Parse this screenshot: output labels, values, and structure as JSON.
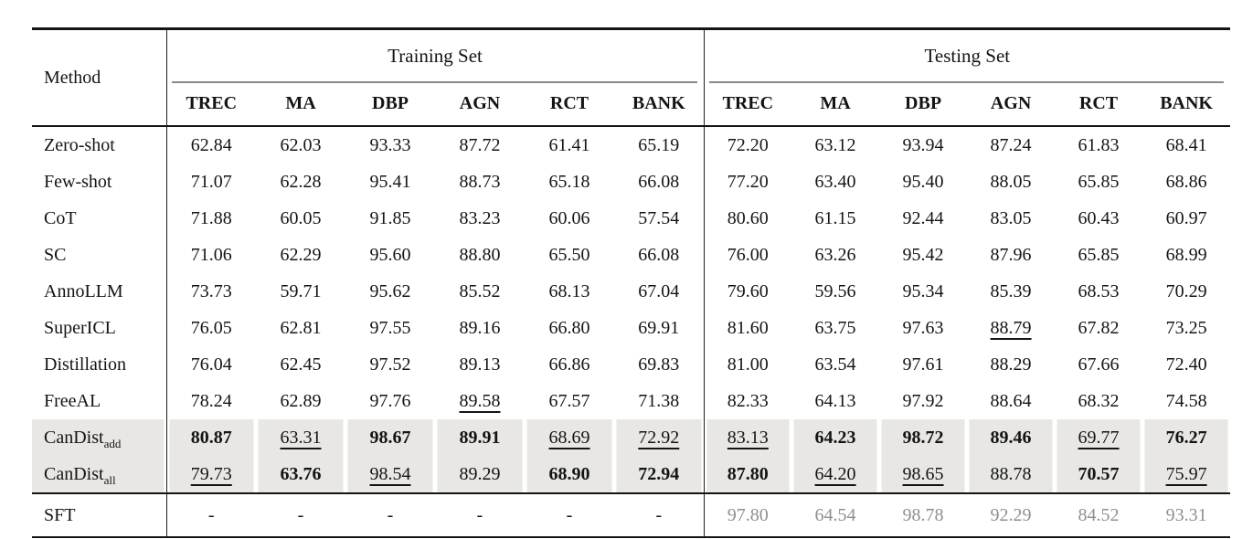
{
  "table": {
    "header": {
      "method_label": "Method",
      "groups": [
        {
          "label": "Training Set"
        },
        {
          "label": "Testing Set"
        }
      ],
      "columns": [
        "TREC",
        "MA",
        "DBP",
        "AGN",
        "RCT",
        "BANK"
      ]
    },
    "rows": [
      {
        "method": "Zero-shot",
        "sub": "",
        "highlight": false,
        "sft": false,
        "cells": [
          {
            "v": "62.84",
            "f": "normal"
          },
          {
            "v": "62.03",
            "f": "normal"
          },
          {
            "v": "93.33",
            "f": "normal"
          },
          {
            "v": "87.72",
            "f": "normal"
          },
          {
            "v": "61.41",
            "f": "normal"
          },
          {
            "v": "65.19",
            "f": "normal"
          },
          {
            "v": "72.20",
            "f": "normal"
          },
          {
            "v": "63.12",
            "f": "normal"
          },
          {
            "v": "93.94",
            "f": "normal"
          },
          {
            "v": "87.24",
            "f": "normal"
          },
          {
            "v": "61.83",
            "f": "normal"
          },
          {
            "v": "68.41",
            "f": "normal"
          }
        ]
      },
      {
        "method": "Few-shot",
        "sub": "",
        "highlight": false,
        "sft": false,
        "cells": [
          {
            "v": "71.07",
            "f": "normal"
          },
          {
            "v": "62.28",
            "f": "normal"
          },
          {
            "v": "95.41",
            "f": "normal"
          },
          {
            "v": "88.73",
            "f": "normal"
          },
          {
            "v": "65.18",
            "f": "normal"
          },
          {
            "v": "66.08",
            "f": "normal"
          },
          {
            "v": "77.20",
            "f": "normal"
          },
          {
            "v": "63.40",
            "f": "normal"
          },
          {
            "v": "95.40",
            "f": "normal"
          },
          {
            "v": "88.05",
            "f": "normal"
          },
          {
            "v": "65.85",
            "f": "normal"
          },
          {
            "v": "68.86",
            "f": "normal"
          }
        ]
      },
      {
        "method": "CoT",
        "sub": "",
        "highlight": false,
        "sft": false,
        "cells": [
          {
            "v": "71.88",
            "f": "normal"
          },
          {
            "v": "60.05",
            "f": "normal"
          },
          {
            "v": "91.85",
            "f": "normal"
          },
          {
            "v": "83.23",
            "f": "normal"
          },
          {
            "v": "60.06",
            "f": "normal"
          },
          {
            "v": "57.54",
            "f": "normal"
          },
          {
            "v": "80.60",
            "f": "normal"
          },
          {
            "v": "61.15",
            "f": "normal"
          },
          {
            "v": "92.44",
            "f": "normal"
          },
          {
            "v": "83.05",
            "f": "normal"
          },
          {
            "v": "60.43",
            "f": "normal"
          },
          {
            "v": "60.97",
            "f": "normal"
          }
        ]
      },
      {
        "method": "SC",
        "sub": "",
        "highlight": false,
        "sft": false,
        "cells": [
          {
            "v": "71.06",
            "f": "normal"
          },
          {
            "v": "62.29",
            "f": "normal"
          },
          {
            "v": "95.60",
            "f": "normal"
          },
          {
            "v": "88.80",
            "f": "normal"
          },
          {
            "v": "65.50",
            "f": "normal"
          },
          {
            "v": "66.08",
            "f": "normal"
          },
          {
            "v": "76.00",
            "f": "normal"
          },
          {
            "v": "63.26",
            "f": "normal"
          },
          {
            "v": "95.42",
            "f": "normal"
          },
          {
            "v": "87.96",
            "f": "normal"
          },
          {
            "v": "65.85",
            "f": "normal"
          },
          {
            "v": "68.99",
            "f": "normal"
          }
        ]
      },
      {
        "method": "AnnoLLM",
        "sub": "",
        "highlight": false,
        "sft": false,
        "cells": [
          {
            "v": "73.73",
            "f": "normal"
          },
          {
            "v": "59.71",
            "f": "normal"
          },
          {
            "v": "95.62",
            "f": "normal"
          },
          {
            "v": "85.52",
            "f": "normal"
          },
          {
            "v": "68.13",
            "f": "normal"
          },
          {
            "v": "67.04",
            "f": "normal"
          },
          {
            "v": "79.60",
            "f": "normal"
          },
          {
            "v": "59.56",
            "f": "normal"
          },
          {
            "v": "95.34",
            "f": "normal"
          },
          {
            "v": "85.39",
            "f": "normal"
          },
          {
            "v": "68.53",
            "f": "normal"
          },
          {
            "v": "70.29",
            "f": "normal"
          }
        ]
      },
      {
        "method": "SuperICL",
        "sub": "",
        "highlight": false,
        "sft": false,
        "cells": [
          {
            "v": "76.05",
            "f": "normal"
          },
          {
            "v": "62.81",
            "f": "normal"
          },
          {
            "v": "97.55",
            "f": "normal"
          },
          {
            "v": "89.16",
            "f": "normal"
          },
          {
            "v": "66.80",
            "f": "normal"
          },
          {
            "v": "69.91",
            "f": "normal"
          },
          {
            "v": "81.60",
            "f": "normal"
          },
          {
            "v": "63.75",
            "f": "normal"
          },
          {
            "v": "97.63",
            "f": "normal"
          },
          {
            "v": "88.79",
            "f": "underline"
          },
          {
            "v": "67.82",
            "f": "normal"
          },
          {
            "v": "73.25",
            "f": "normal"
          }
        ]
      },
      {
        "method": "Distillation",
        "sub": "",
        "highlight": false,
        "sft": false,
        "cells": [
          {
            "v": "76.04",
            "f": "normal"
          },
          {
            "v": "62.45",
            "f": "normal"
          },
          {
            "v": "97.52",
            "f": "normal"
          },
          {
            "v": "89.13",
            "f": "normal"
          },
          {
            "v": "66.86",
            "f": "normal"
          },
          {
            "v": "69.83",
            "f": "normal"
          },
          {
            "v": "81.00",
            "f": "normal"
          },
          {
            "v": "63.54",
            "f": "normal"
          },
          {
            "v": "97.61",
            "f": "normal"
          },
          {
            "v": "88.29",
            "f": "normal"
          },
          {
            "v": "67.66",
            "f": "normal"
          },
          {
            "v": "72.40",
            "f": "normal"
          }
        ]
      },
      {
        "method": "FreeAL",
        "sub": "",
        "highlight": false,
        "sft": false,
        "cells": [
          {
            "v": "78.24",
            "f": "normal"
          },
          {
            "v": "62.89",
            "f": "normal"
          },
          {
            "v": "97.76",
            "f": "normal"
          },
          {
            "v": "89.58",
            "f": "underline"
          },
          {
            "v": "67.57",
            "f": "normal"
          },
          {
            "v": "71.38",
            "f": "normal"
          },
          {
            "v": "82.33",
            "f": "normal"
          },
          {
            "v": "64.13",
            "f": "normal"
          },
          {
            "v": "97.92",
            "f": "normal"
          },
          {
            "v": "88.64",
            "f": "normal"
          },
          {
            "v": "68.32",
            "f": "normal"
          },
          {
            "v": "74.58",
            "f": "normal"
          }
        ]
      },
      {
        "method": "CanDist",
        "sub": "add",
        "highlight": true,
        "sft": false,
        "cells": [
          {
            "v": "80.87",
            "f": "bold"
          },
          {
            "v": "63.31",
            "f": "underline"
          },
          {
            "v": "98.67",
            "f": "bold"
          },
          {
            "v": "89.91",
            "f": "bold"
          },
          {
            "v": "68.69",
            "f": "underline"
          },
          {
            "v": "72.92",
            "f": "underline"
          },
          {
            "v": "83.13",
            "f": "underline"
          },
          {
            "v": "64.23",
            "f": "bold"
          },
          {
            "v": "98.72",
            "f": "bold"
          },
          {
            "v": "89.46",
            "f": "bold"
          },
          {
            "v": "69.77",
            "f": "underline"
          },
          {
            "v": "76.27",
            "f": "bold"
          }
        ]
      },
      {
        "method": "CanDist",
        "sub": "all",
        "highlight": true,
        "sft": false,
        "cells": [
          {
            "v": "79.73",
            "f": "underline"
          },
          {
            "v": "63.76",
            "f": "bold"
          },
          {
            "v": "98.54",
            "f": "underline"
          },
          {
            "v": "89.29",
            "f": "normal"
          },
          {
            "v": "68.90",
            "f": "bold"
          },
          {
            "v": "72.94",
            "f": "bold"
          },
          {
            "v": "87.80",
            "f": "bold"
          },
          {
            "v": "64.20",
            "f": "underline"
          },
          {
            "v": "98.65",
            "f": "underline"
          },
          {
            "v": "88.78",
            "f": "normal"
          },
          {
            "v": "70.57",
            "f": "bold"
          },
          {
            "v": "75.97",
            "f": "underline"
          }
        ]
      },
      {
        "method": "SFT",
        "sub": "",
        "highlight": false,
        "sft": true,
        "cells": [
          {
            "v": "-",
            "f": "normal"
          },
          {
            "v": "-",
            "f": "normal"
          },
          {
            "v": "-",
            "f": "normal"
          },
          {
            "v": "-",
            "f": "normal"
          },
          {
            "v": "-",
            "f": "normal"
          },
          {
            "v": "-",
            "f": "normal"
          },
          {
            "v": "97.80",
            "f": "muted"
          },
          {
            "v": "64.54",
            "f": "muted"
          },
          {
            "v": "98.78",
            "f": "muted"
          },
          {
            "v": "92.29",
            "f": "muted"
          },
          {
            "v": "84.52",
            "f": "muted"
          },
          {
            "v": "93.31",
            "f": "muted"
          }
        ]
      }
    ],
    "colors": {
      "highlight_row_bg": "#e8e7e4",
      "muted_text": "#8f8f8f",
      "rule_dark": "#141414",
      "rule_gray": "#8a8a8a",
      "page_bg": "#ffffff"
    }
  }
}
